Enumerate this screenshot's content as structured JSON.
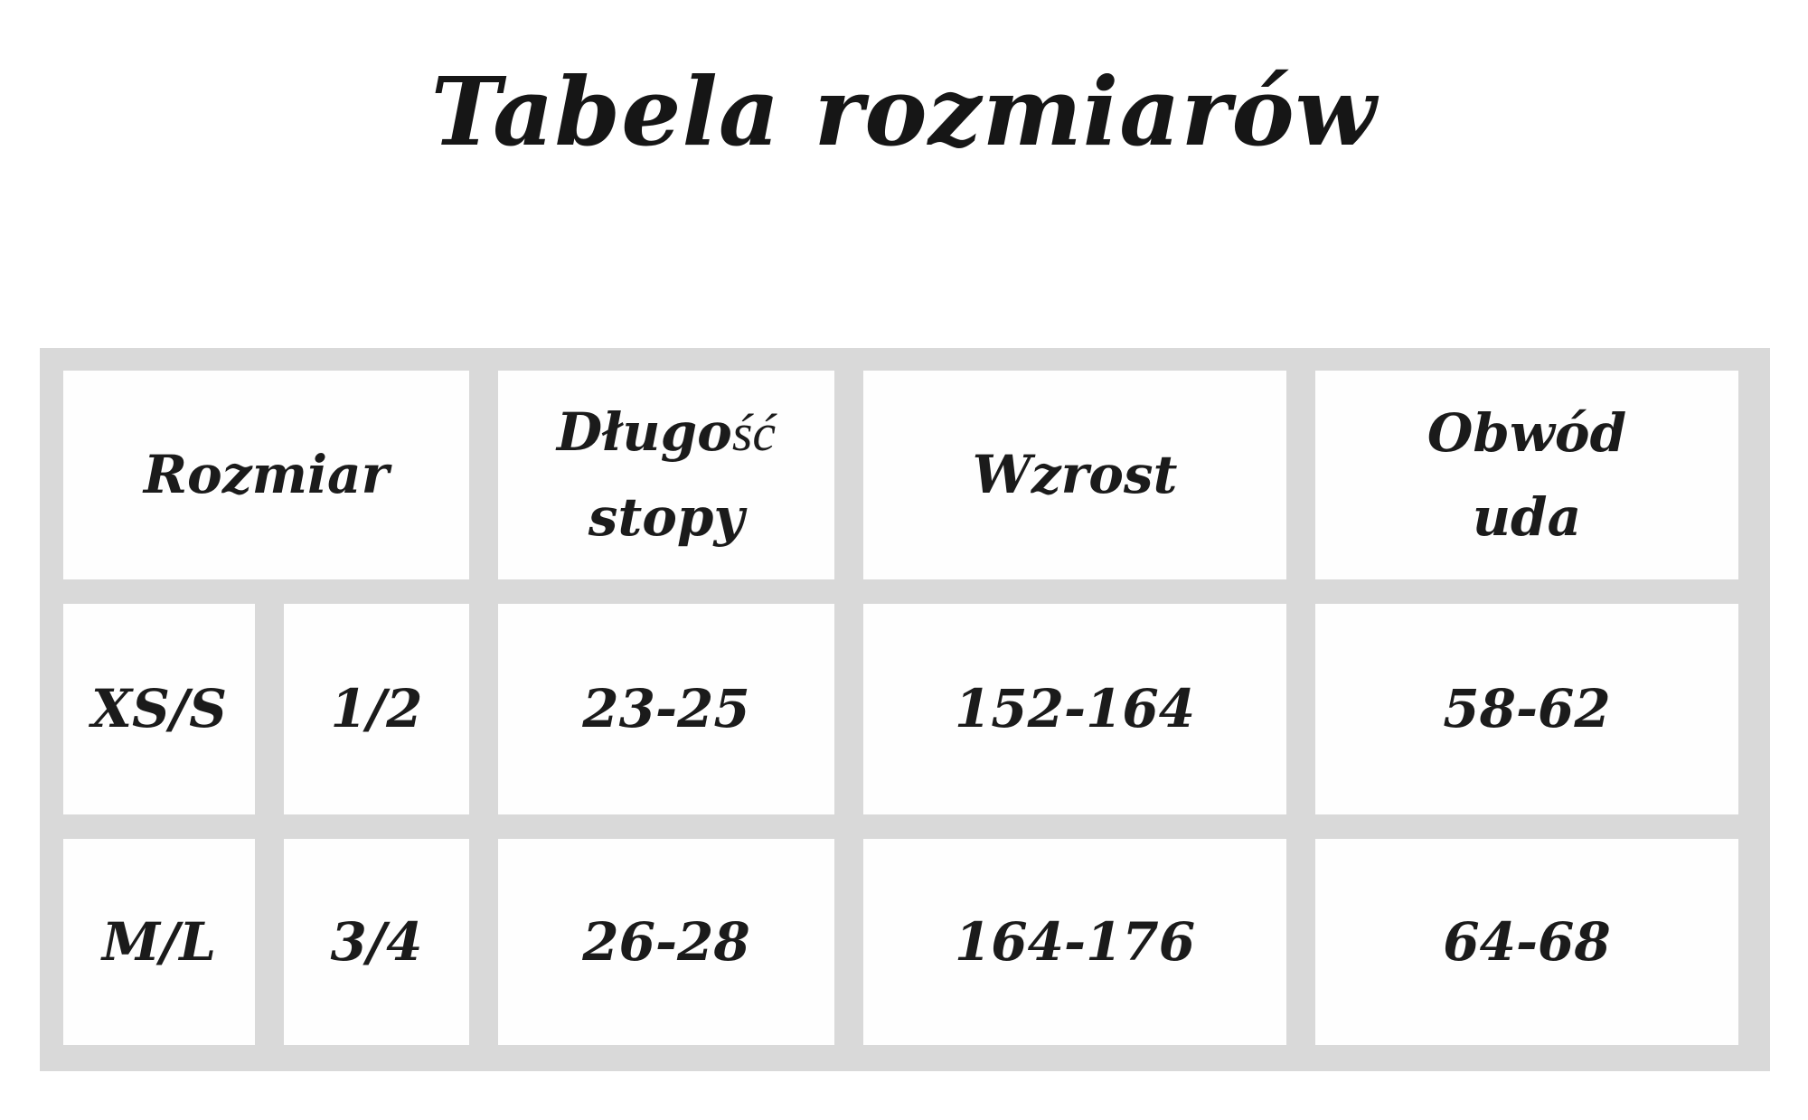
{
  "title": "Tabela rozmiarów",
  "chart_data": {
    "type": "table",
    "title": "Tabela rozmiarów",
    "columns": [
      "Rozmiar",
      "Długość stopy",
      "Wzrost",
      "Obwód uda"
    ],
    "headers": {
      "rozmiar": "Rozmiar",
      "dlugosc_script_part": "Długo",
      "dlugosc_fallback_part": "ść",
      "dlugosc_line2": "stopy",
      "wzrost": "Wzrost",
      "obwod_line1": "Obwód",
      "obwod_line2": "uda"
    },
    "rows": [
      {
        "size": "XS/S",
        "size_alt": "1/2",
        "foot_length": "23-25",
        "height": "152-164",
        "thigh": "58-62"
      },
      {
        "size": "M/L",
        "size_alt": "3/4",
        "foot_length": "26-28",
        "height": "164-176",
        "thigh": "64-68"
      }
    ]
  },
  "colors": {
    "grid_gray": "#d9d9d9",
    "cell_white": "#fefefe",
    "text": "#1b1b1b",
    "page_bg": "#ffffff"
  }
}
